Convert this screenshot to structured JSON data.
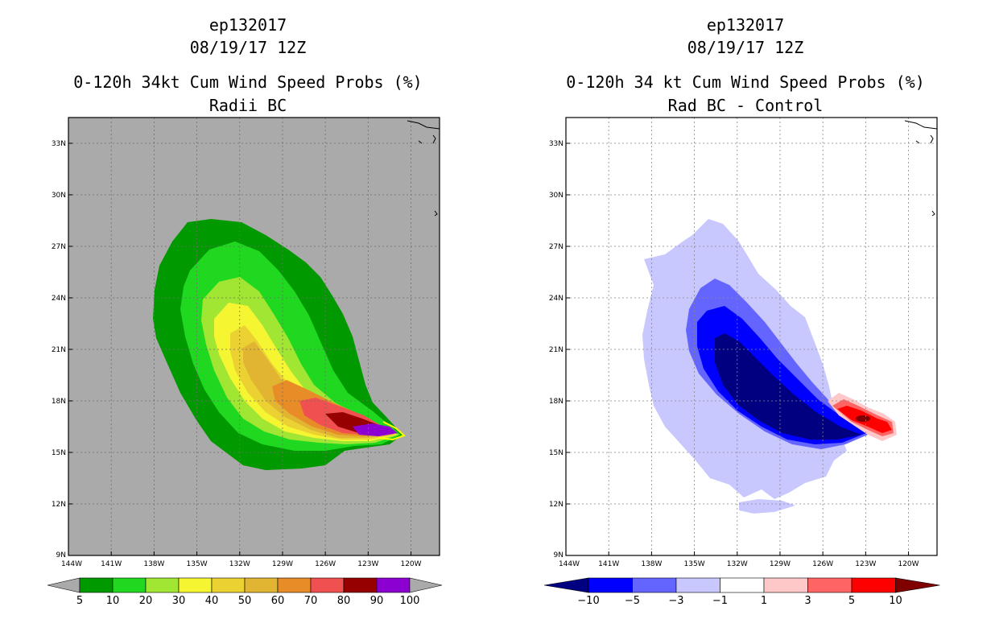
{
  "chart_data": [
    {
      "type": "heatmap",
      "storm_id": "ep132017",
      "date": "08/19/17 12Z",
      "title": "0-120h 34kt Cum Wind Speed Probs (%)",
      "subtitle": "Radii BC",
      "x_ticks": [
        "144W",
        "141W",
        "138W",
        "135W",
        "132W",
        "129W",
        "126W",
        "123W",
        "120W"
      ],
      "y_ticks": [
        "9N",
        "12N",
        "15N",
        "18N",
        "21N",
        "24N",
        "27N",
        "30N",
        "33N"
      ],
      "xlim": [
        -144,
        -118
      ],
      "ylim": [
        9,
        34.5
      ],
      "background_color": "#aaaaaa",
      "colorbar": {
        "labels": [
          "5",
          "10",
          "20",
          "30",
          "40",
          "50",
          "60",
          "70",
          "80",
          "90",
          "100"
        ],
        "colors": [
          "#009900",
          "#1fd81f",
          "#a0e632",
          "#f5f532",
          "#ebd232",
          "#e1b432",
          "#e88c28",
          "#f05050",
          "#960000",
          "#8c00d2"
        ]
      },
      "contour_levels": [
        5,
        10,
        20,
        30,
        40,
        50,
        60,
        70,
        80,
        90,
        100
      ],
      "peak_location": {
        "lon": -121.5,
        "lat": 16.0
      }
    },
    {
      "type": "heatmap",
      "storm_id": "ep132017",
      "date": "08/19/17 12Z",
      "title": "0-120h 34 kt Cum Wind Speed Probs (%)",
      "subtitle": "Rad BC - Control",
      "x_ticks": [
        "144W",
        "141W",
        "138W",
        "135W",
        "132W",
        "129W",
        "126W",
        "123W",
        "120W"
      ],
      "y_ticks": [
        "9N",
        "12N",
        "15N",
        "18N",
        "21N",
        "24N",
        "27N",
        "30N",
        "33N"
      ],
      "xlim": [
        -144,
        -118
      ],
      "ylim": [
        9,
        34.5
      ],
      "background_color": "#ffffff",
      "colorbar": {
        "labels": [
          "-10",
          "-5",
          "-3",
          "-1",
          "1",
          "3",
          "5",
          "10"
        ],
        "colors": [
          "#000080",
          "#0000ff",
          "#6464ff",
          "#c8c8ff",
          "#ffffff",
          "#ffc8c8",
          "#ff6464",
          "#ff0000"
        ]
      },
      "contour_levels": [
        -10,
        -5,
        -3,
        -1,
        1,
        3,
        5,
        10
      ]
    }
  ]
}
